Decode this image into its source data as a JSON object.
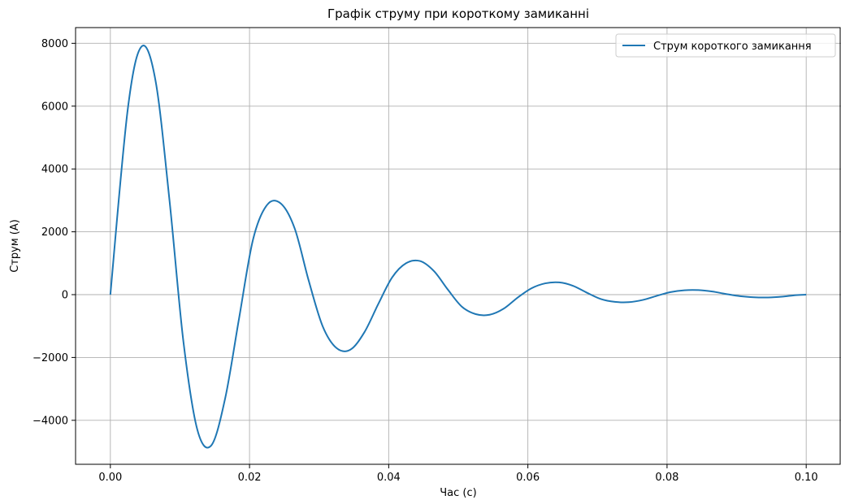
{
  "chart_data": {
    "type": "line",
    "title": "Графік струму при короткому замиканні",
    "xlabel": "Час (с)",
    "ylabel": "Струм (А)",
    "xlim": [
      -0.005,
      0.105
    ],
    "ylim": [
      -5400,
      8500
    ],
    "xticks": [
      0.0,
      0.02,
      0.04,
      0.06,
      0.08,
      0.1
    ],
    "xtick_labels": [
      "0.00",
      "0.02",
      "0.04",
      "0.06",
      "0.08",
      "0.10"
    ],
    "yticks": [
      -4000,
      -2000,
      0,
      2000,
      4000,
      6000,
      8000
    ],
    "ytick_labels": [
      "−4000",
      "−2000",
      "0",
      "2000",
      "4000",
      "6000",
      "8000"
    ],
    "grid": true,
    "legend_position": "upper right",
    "series": [
      {
        "name": "Струм короткого замикання",
        "color": "#1f77b4",
        "x": [
          0.0,
          0.0025,
          0.0045,
          0.0065,
          0.0085,
          0.0105,
          0.0125,
          0.0145,
          0.0165,
          0.0185,
          0.0205,
          0.0225,
          0.0245,
          0.0265,
          0.0285,
          0.0305,
          0.0325,
          0.0345,
          0.0365,
          0.0385,
          0.0405,
          0.0425,
          0.0445,
          0.0465,
          0.0485,
          0.0505,
          0.0525,
          0.0545,
          0.0565,
          0.0585,
          0.0605,
          0.0625,
          0.0645,
          0.0665,
          0.0685,
          0.0705,
          0.0725,
          0.0745,
          0.0765,
          0.0785,
          0.0805,
          0.0825,
          0.0845,
          0.0865,
          0.0885,
          0.0905,
          0.0925,
          0.0945,
          0.0965,
          0.0985,
          0.1
        ],
        "y": [
          0,
          5900,
          7900,
          6800,
          3000,
          -1500,
          -4300,
          -4800,
          -3300,
          -750,
          1750,
          2850,
          2900,
          2100,
          450,
          -1000,
          -1700,
          -1750,
          -1200,
          -300,
          550,
          1000,
          1070,
          750,
          160,
          -380,
          -620,
          -640,
          -450,
          -100,
          200,
          360,
          390,
          280,
          60,
          -140,
          -230,
          -240,
          -170,
          -40,
          80,
          140,
          145,
          100,
          20,
          -50,
          -85,
          -90,
          -65,
          -15,
          0
        ]
      }
    ]
  }
}
